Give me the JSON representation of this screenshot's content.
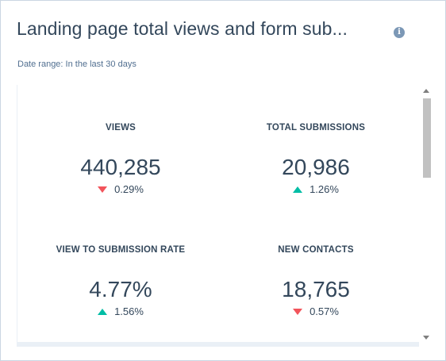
{
  "card": {
    "title": "Landing page total views and form sub...",
    "info_icon": "info-icon",
    "date_range": "Date range:  In the last 30 days"
  },
  "kpis": [
    {
      "label": "VIEWS",
      "value": "440,285",
      "change": "0.29%",
      "direction": "down",
      "color": "#f2545b"
    },
    {
      "label": "TOTAL SUBMISSIONS",
      "value": "20,986",
      "change": "1.26%",
      "direction": "up",
      "color": "#00bda5"
    },
    {
      "label": "VIEW TO SUBMISSION RATE",
      "value": "4.77%",
      "change": "1.56%",
      "direction": "up",
      "color": "#00bda5"
    },
    {
      "label": "NEW CONTACTS",
      "value": "18,765",
      "change": "0.57%",
      "direction": "down",
      "color": "#f2545b"
    }
  ],
  "colors": {
    "text": "#33475b",
    "muted": "#516f90",
    "border": "#cbd6e2",
    "down": "#f2545b",
    "up": "#00bda5"
  }
}
